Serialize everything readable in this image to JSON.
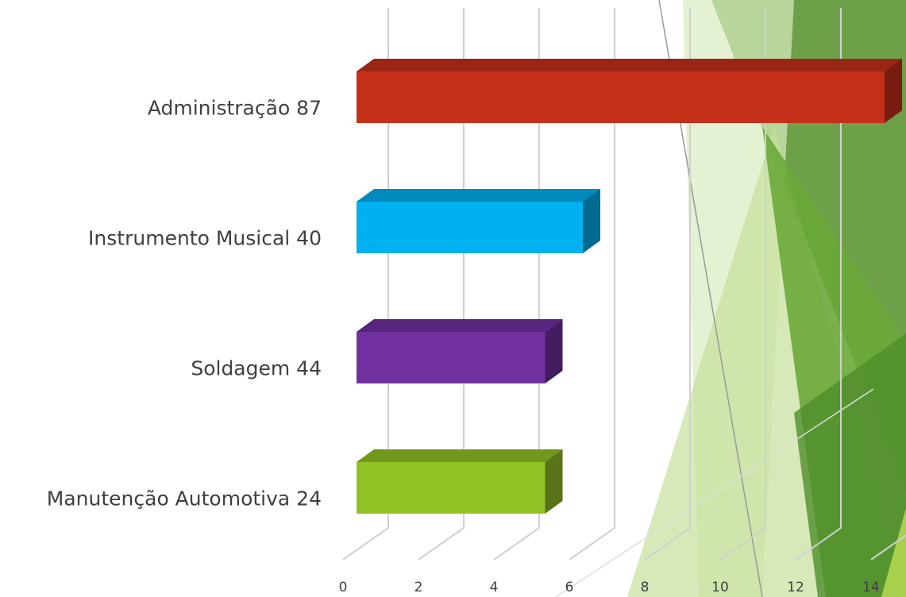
{
  "chart_data": {
    "type": "bar",
    "orientation": "horizontal",
    "categories": [
      "Administração 87",
      "Instrumento Musical 40",
      "Soldagem 44",
      "Manutenção Automotiva 24"
    ],
    "values": [
      14,
      6,
      5,
      5
    ],
    "colors": [
      "#c5301a",
      "#00b0f0",
      "#7030a0",
      "#92c225"
    ],
    "xlim": [
      0,
      14
    ],
    "xticks": [
      0,
      2,
      4,
      6,
      8,
      10,
      12,
      14
    ],
    "grid": true
  }
}
